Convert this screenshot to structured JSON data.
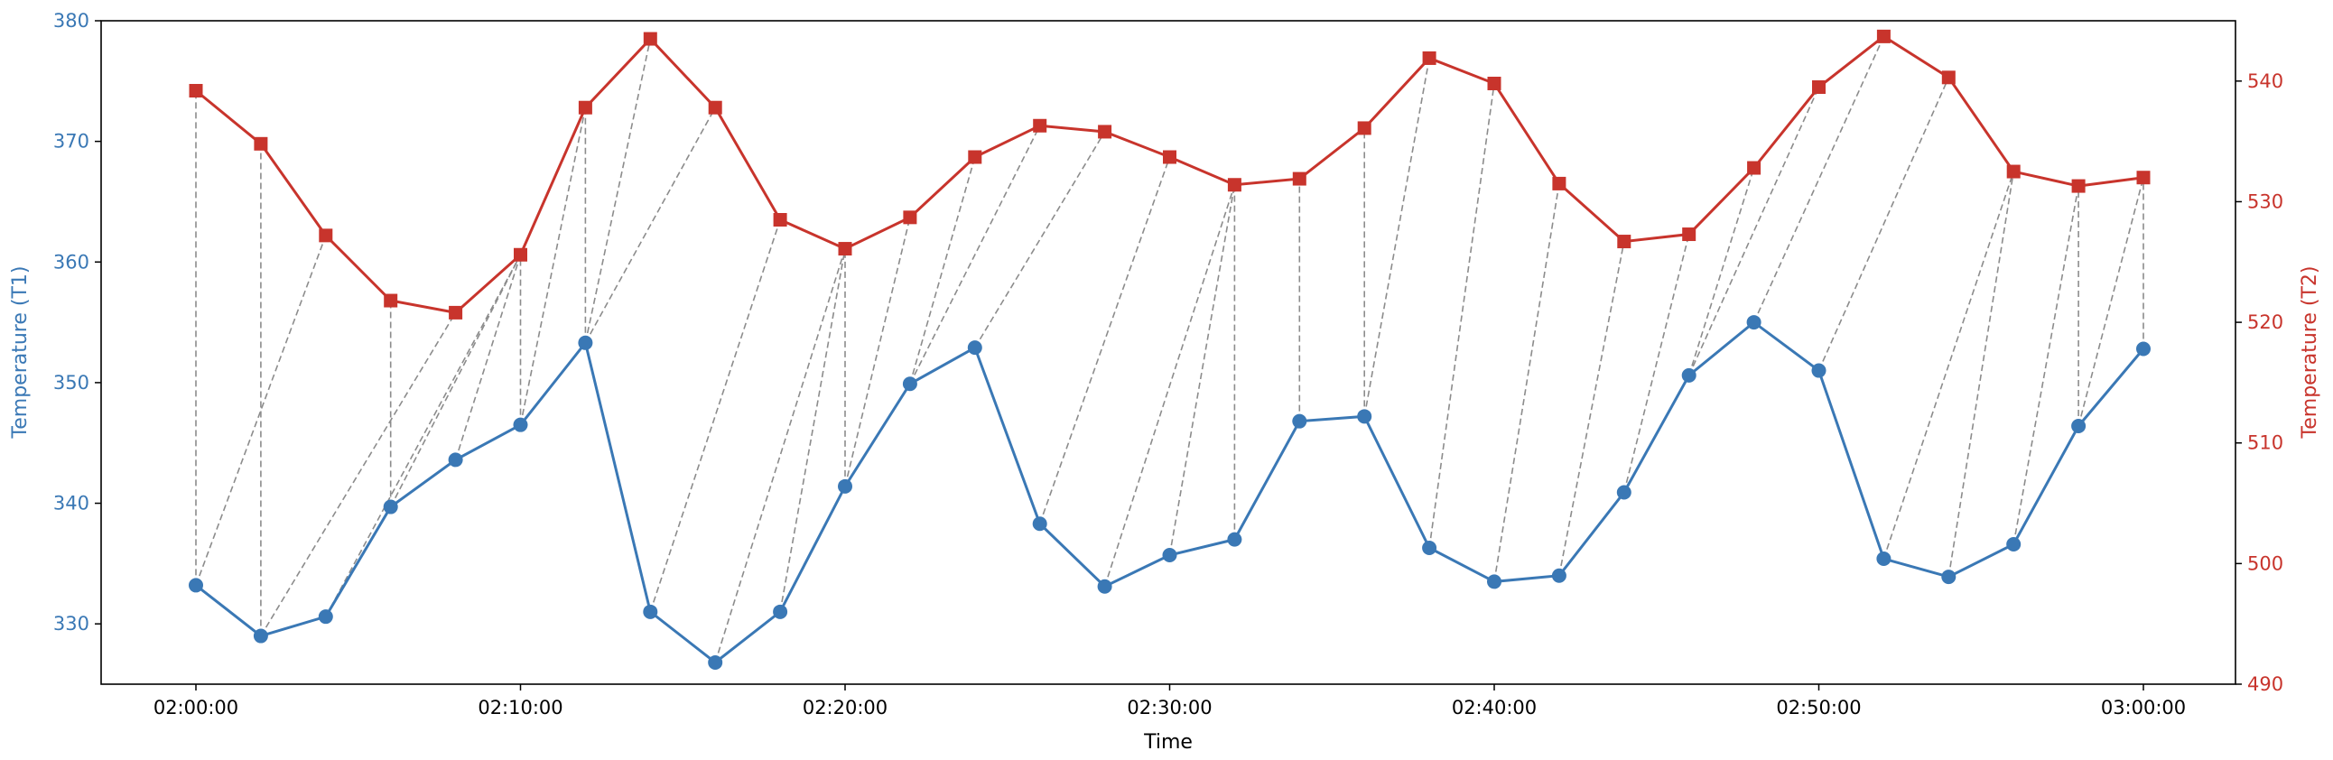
{
  "chart_data": {
    "type": "line",
    "xlabel": "Time",
    "x": [
      "02:00:00",
      "02:02:00",
      "02:04:00",
      "02:06:00",
      "02:08:00",
      "02:10:00",
      "02:12:00",
      "02:14:00",
      "02:16:00",
      "02:18:00",
      "02:20:00",
      "02:22:00",
      "02:24:00",
      "02:26:00",
      "02:28:00",
      "02:30:00",
      "02:32:00",
      "02:34:00",
      "02:36:00",
      "02:38:00",
      "02:40:00",
      "02:42:00",
      "02:44:00",
      "02:46:00",
      "02:48:00",
      "02:50:00",
      "02:52:00",
      "02:54:00",
      "02:56:00",
      "02:58:00",
      "03:00:00"
    ],
    "xticks": [
      "02:00:00",
      "02:10:00",
      "02:20:00",
      "02:30:00",
      "02:40:00",
      "02:50:00",
      "03:00:00"
    ],
    "y_left": {
      "label": "Temperature (T1)",
      "color": "#3a78b5",
      "lim": [
        325,
        380
      ],
      "ticks": [
        330,
        340,
        350,
        360,
        370,
        380
      ]
    },
    "y_right": {
      "label": "Temperature (T2)",
      "color": "#c8342c",
      "lim": [
        490,
        545
      ],
      "ticks": [
        490,
        500,
        510,
        520,
        530,
        540
      ]
    },
    "series": [
      {
        "axis": "left",
        "marker": "circle",
        "color": "#3a78b5",
        "values": [
          333.2,
          329.0,
          330.6,
          339.7,
          343.6,
          346.5,
          353.3,
          331.0,
          326.8,
          331.0,
          341.4,
          349.9,
          352.9,
          338.3,
          333.1,
          335.7,
          337.0,
          346.8,
          347.2,
          336.3,
          333.5,
          334.0,
          340.9,
          350.6,
          355.0,
          351.0,
          335.4,
          333.9,
          336.6,
          346.4,
          352.8
        ]
      },
      {
        "axis": "right",
        "marker": "square",
        "color": "#c8342c",
        "values": [
          539.2,
          534.8,
          527.2,
          521.8,
          520.8,
          525.6,
          537.8,
          543.5,
          537.8,
          528.5,
          526.1,
          528.7,
          533.7,
          536.3,
          535.8,
          533.7,
          531.4,
          531.9,
          536.1,
          541.9,
          539.8,
          531.5,
          526.7,
          527.3,
          532.8,
          539.5,
          543.7,
          540.3,
          532.5,
          531.3,
          532.0
        ]
      }
    ],
    "connections": [
      [
        0,
        0
      ],
      [
        0,
        2
      ],
      [
        1,
        1
      ],
      [
        1,
        4
      ],
      [
        2,
        5
      ],
      [
        3,
        3
      ],
      [
        3,
        5
      ],
      [
        4,
        5
      ],
      [
        5,
        5
      ],
      [
        5,
        6
      ],
      [
        6,
        6
      ],
      [
        6,
        7
      ],
      [
        6,
        8
      ],
      [
        7,
        9
      ],
      [
        8,
        10
      ],
      [
        9,
        10
      ],
      [
        10,
        10
      ],
      [
        10,
        11
      ],
      [
        11,
        12
      ],
      [
        11,
        13
      ],
      [
        12,
        14
      ],
      [
        13,
        15
      ],
      [
        14,
        16
      ],
      [
        15,
        16
      ],
      [
        16,
        16
      ],
      [
        17,
        17
      ],
      [
        18,
        18
      ],
      [
        18,
        19
      ],
      [
        19,
        20
      ],
      [
        20,
        21
      ],
      [
        21,
        22
      ],
      [
        22,
        23
      ],
      [
        23,
        24
      ],
      [
        23,
        25
      ],
      [
        24,
        26
      ],
      [
        25,
        27
      ],
      [
        26,
        28
      ],
      [
        27,
        28
      ],
      [
        28,
        29
      ],
      [
        29,
        29
      ],
      [
        29,
        30
      ],
      [
        30,
        30
      ]
    ],
    "connection_color": "#8c8c8c",
    "grid": false
  }
}
